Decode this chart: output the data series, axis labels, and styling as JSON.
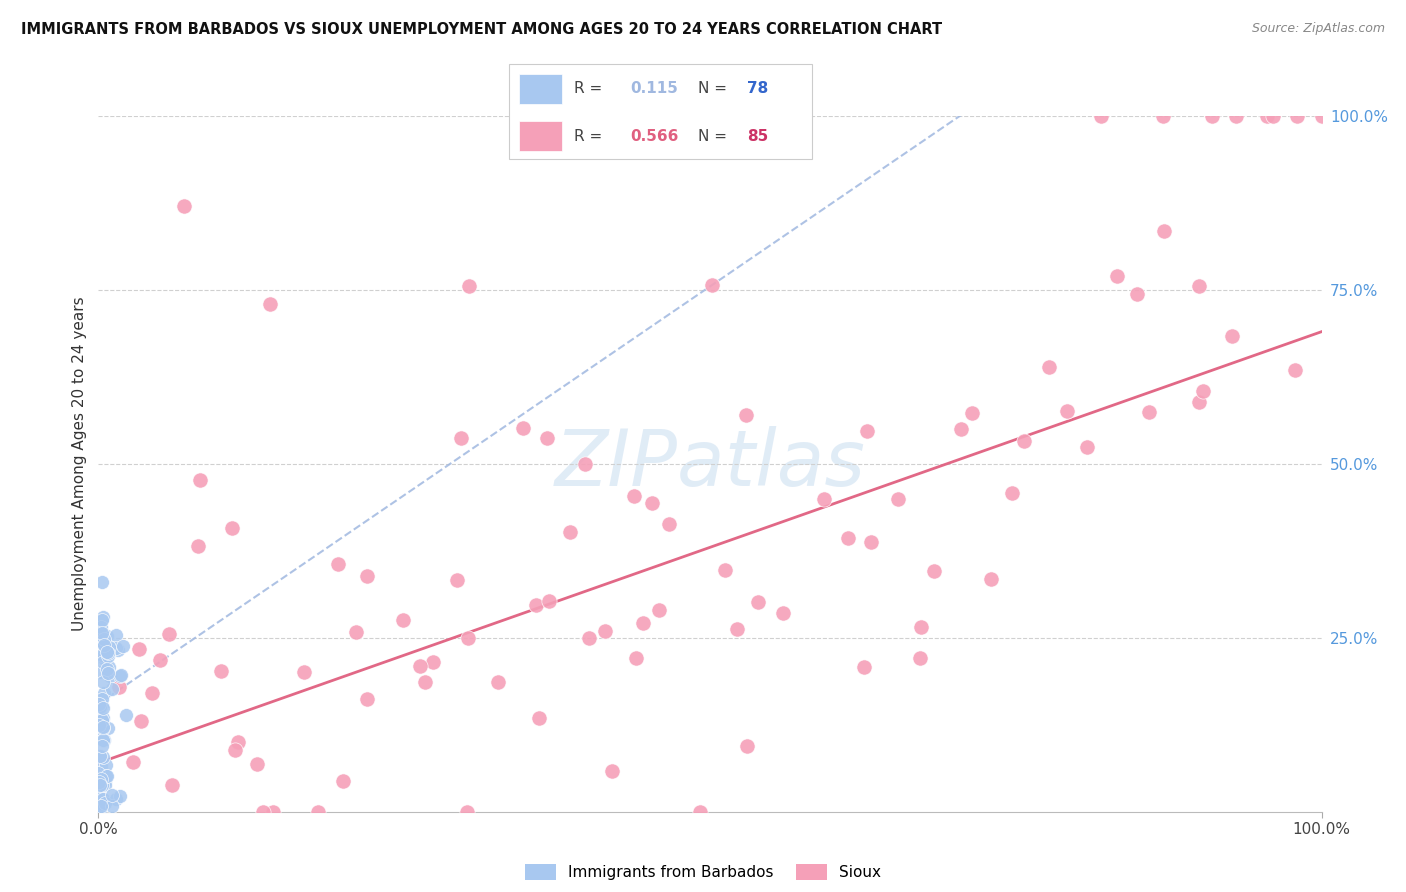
{
  "title": "IMMIGRANTS FROM BARBADOS VS SIOUX UNEMPLOYMENT AMONG AGES 20 TO 24 YEARS CORRELATION CHART",
  "source": "Source: ZipAtlas.com",
  "ylabel": "Unemployment Among Ages 20 to 24 years",
  "legend_label_blue": "Immigrants from Barbados",
  "legend_label_pink": "Sioux",
  "R_blue": 0.115,
  "N_blue": 78,
  "R_pink": 0.566,
  "N_pink": 85,
  "blue_scatter_color": "#a8c8f0",
  "pink_scatter_color": "#f5a0b8",
  "blue_line_color": "#a0b8e0",
  "pink_line_color": "#e06080",
  "watermark_color": "#c8ddf0",
  "right_tick_color": "#5599dd",
  "xlim": [
    0.0,
    1.0
  ],
  "ylim": [
    0.0,
    1.0
  ],
  "blue_trend_intercept": 0.155,
  "blue_trend_slope": 1.2,
  "pink_trend_intercept": 0.07,
  "pink_trend_slope": 0.62
}
